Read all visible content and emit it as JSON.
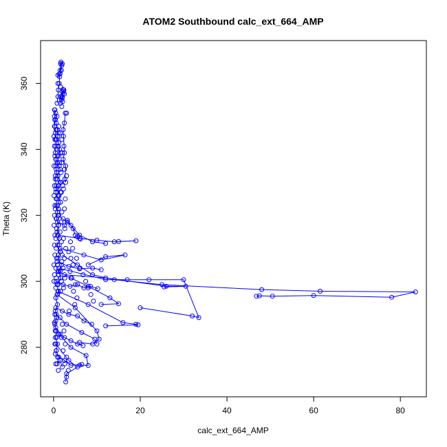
{
  "chart_data": {
    "type": "line",
    "title": "ATOM2 Southbound calc_ext_664_AMP",
    "xlabel": "calc_ext_664_AMP",
    "ylabel": "Theta (K)",
    "xlim": [
      -3,
      86
    ],
    "ylim": [
      265,
      373
    ],
    "xticks": [
      0,
      20,
      40,
      60,
      80
    ],
    "yticks": [
      280,
      300,
      320,
      340,
      360
    ],
    "grid": false,
    "color": "#0000ff",
    "marker": "open-circle",
    "series": [
      {
        "name": "",
        "points": [
          [
            0.2,
            352
          ],
          [
            0.3,
            349
          ],
          [
            0.2,
            347
          ],
          [
            0.4,
            345
          ],
          [
            0.3,
            343
          ],
          [
            0.5,
            341
          ],
          [
            0.4,
            339
          ],
          [
            0.6,
            337
          ],
          [
            0.5,
            335
          ],
          [
            0.7,
            333
          ],
          [
            0.4,
            331
          ],
          [
            0.6,
            329
          ],
          [
            0.5,
            327
          ],
          [
            0.8,
            325
          ],
          [
            0.6,
            323
          ],
          [
            0.9,
            321
          ],
          [
            0.7,
            319
          ],
          [
            1.1,
            317
          ],
          [
            0.8,
            315
          ],
          [
            1.3,
            313
          ],
          [
            0.9,
            311
          ],
          [
            1.5,
            309
          ],
          [
            1.0,
            307
          ],
          [
            1.8,
            305
          ],
          [
            1.2,
            303
          ],
          [
            1.6,
            301
          ],
          [
            0.8,
            299
          ],
          [
            1.1,
            297
          ],
          [
            0.5,
            295
          ],
          [
            0.9,
            293
          ],
          [
            0.4,
            291
          ],
          [
            0.7,
            289
          ],
          [
            0.3,
            287
          ],
          [
            0.6,
            285
          ],
          [
            0.4,
            283
          ],
          [
            0.9,
            281
          ],
          [
            0.6,
            279
          ],
          [
            1.2,
            277
          ],
          [
            0.8,
            275
          ],
          [
            1.5,
            276
          ],
          [
            2.0,
            274
          ]
        ]
      },
      {
        "name": "",
        "points": [
          [
            2.0,
            308
          ],
          [
            5.5,
            305
          ],
          [
            9.0,
            302
          ],
          [
            14.0,
            300.5
          ],
          [
            25.0,
            299
          ],
          [
            48.0,
            297.5
          ],
          [
            61.5,
            297
          ],
          [
            83.5,
            296.8
          ],
          [
            78.0,
            295.2
          ],
          [
            60.0,
            295.7
          ],
          [
            50.5,
            295.5
          ],
          [
            47.5,
            295.6
          ],
          [
            46.8,
            295.5
          ]
        ]
      },
      {
        "name": "",
        "points": [
          [
            1.0,
            297
          ],
          [
            8.0,
            293
          ],
          [
            16.0,
            287.5
          ],
          [
            19.0,
            287
          ],
          [
            19.5,
            286.8
          ],
          [
            12.0,
            286.5
          ]
        ]
      },
      {
        "name": "",
        "points": [
          [
            1.2,
            304
          ],
          [
            12.0,
            300.5
          ],
          [
            17.0,
            300.5
          ],
          [
            22.0,
            300.5
          ],
          [
            30.0,
            300.5
          ],
          [
            33.5,
            289
          ],
          [
            32.0,
            289.5
          ],
          [
            20.0,
            292
          ]
        ]
      },
      {
        "name": "",
        "points": [
          [
            2.5,
            302
          ],
          [
            12.0,
            301
          ],
          [
            26.0,
            298.5
          ],
          [
            30.5,
            298.5
          ],
          [
            25.5,
            298.3
          ]
        ]
      },
      {
        "name": "",
        "points": [
          [
            1.0,
            314
          ],
          [
            6.0,
            313
          ],
          [
            10.0,
            312.5
          ],
          [
            14.0,
            312
          ],
          [
            19.0,
            312.3
          ],
          [
            15.0,
            312.1
          ]
        ]
      },
      {
        "name": "",
        "points": [
          [
            1.5,
            310
          ],
          [
            7.0,
            308
          ],
          [
            11.0,
            306.5
          ],
          [
            16.5,
            308
          ],
          [
            12.0,
            307.5
          ],
          [
            8.0,
            305
          ]
        ]
      },
      {
        "name": "",
        "points": [
          [
            1.0,
            303
          ],
          [
            4.0,
            301
          ],
          [
            8.0,
            298.5
          ],
          [
            13.0,
            295
          ],
          [
            15.0,
            293.2
          ],
          [
            11.0,
            293
          ]
        ]
      },
      {
        "name": "",
        "points": [
          [
            0.8,
            296
          ],
          [
            5.0,
            292
          ],
          [
            10.0,
            285
          ],
          [
            10.5,
            282.5
          ],
          [
            9.0,
            281
          ],
          [
            6.0,
            281.5
          ]
        ]
      },
      {
        "name": "",
        "points": [
          [
            1.2,
            284
          ],
          [
            4.0,
            280
          ],
          [
            7.5,
            277.5
          ],
          [
            8.0,
            274.5
          ],
          [
            6.0,
            274.6
          ]
        ]
      },
      {
        "name": "",
        "points": [
          [
            0.5,
            281
          ],
          [
            3.5,
            276
          ],
          [
            5.5,
            274
          ],
          [
            3.0,
            272
          ],
          [
            2.8,
            269.5
          ]
        ]
      },
      {
        "name": "",
        "points": [
          [
            1.0,
            320
          ],
          [
            4.0,
            317
          ],
          [
            6.0,
            314
          ],
          [
            9.0,
            312
          ],
          [
            12.0,
            311.5
          ]
        ]
      },
      {
        "name": "",
        "points": [
          [
            0.8,
            306
          ],
          [
            3.5,
            304.5
          ],
          [
            6.0,
            303.8
          ],
          [
            9.0,
            304
          ],
          [
            11.0,
            303.5
          ]
        ]
      },
      {
        "name": "",
        "points": [
          [
            0.6,
            290
          ],
          [
            3.0,
            287
          ],
          [
            6.5,
            284.5
          ],
          [
            9.5,
            282.5
          ],
          [
            10.0,
            281
          ]
        ]
      },
      {
        "name": "",
        "points": [
          [
            0.4,
            278
          ],
          [
            2.5,
            276
          ],
          [
            4.0,
            274.5
          ],
          [
            6.5,
            274.8
          ]
        ]
      },
      {
        "name": "",
        "points": [
          [
            0.3,
            352
          ],
          [
            0.5,
            351
          ],
          [
            0.8,
            350
          ],
          [
            0.4,
            349
          ],
          [
            0.6,
            348
          ],
          [
            0.9,
            346
          ],
          [
            1.1,
            345
          ],
          [
            1.0,
            344
          ],
          [
            0.7,
            343
          ],
          [
            1.2,
            342
          ],
          [
            1.4,
            340
          ],
          [
            1.2,
            338
          ],
          [
            0.8,
            336
          ],
          [
            1.5,
            334
          ],
          [
            1.0,
            332
          ],
          [
            1.7,
            330
          ],
          [
            1.1,
            328
          ],
          [
            1.3,
            326
          ],
          [
            1.6,
            324
          ],
          [
            1.1,
            322
          ]
        ]
      },
      {
        "name": "",
        "points": [
          [
            1.8,
            355
          ],
          [
            2.0,
            356
          ],
          [
            2.2,
            357
          ],
          [
            2.4,
            358
          ],
          [
            2.0,
            357.5
          ],
          [
            1.7,
            356
          ],
          [
            1.6,
            354
          ],
          [
            2.0,
            355.5
          ],
          [
            2.3,
            357.6
          ]
        ]
      },
      {
        "name": "",
        "points": [
          [
            0.8,
            354
          ],
          [
            1.0,
            356
          ],
          [
            1.1,
            358
          ],
          [
            1.3,
            360
          ],
          [
            1.4,
            362
          ],
          [
            1.5,
            364
          ],
          [
            1.6,
            366
          ],
          [
            1.7,
            366.5
          ],
          [
            1.9,
            365.5
          ],
          [
            1.5,
            363
          ],
          [
            1.0,
            362.5
          ]
        ]
      },
      {
        "name": "",
        "points": [
          [
            2.7,
            351
          ],
          [
            2.5,
            348
          ],
          [
            2.2,
            346
          ],
          [
            2.3,
            344
          ],
          [
            2.5,
            339
          ],
          [
            2.2,
            337
          ],
          [
            2.8,
            335
          ],
          [
            2.6,
            331
          ],
          [
            2.8,
            330
          ]
        ]
      },
      {
        "name": "",
        "points": [
          [
            0.9,
            318
          ],
          [
            2.5,
            317
          ],
          [
            3.2,
            318.5
          ],
          [
            4.5,
            316
          ],
          [
            5.0,
            314
          ],
          [
            5.5,
            313.5
          ],
          [
            6.2,
            312.8
          ]
        ]
      },
      {
        "name": "",
        "points": [
          [
            0.6,
            300
          ],
          [
            2.2,
            299
          ],
          [
            3.8,
            298.5
          ],
          [
            5.5,
            299
          ],
          [
            7.0,
            298
          ],
          [
            8.5,
            298.5
          ],
          [
            10.2,
            297.8
          ]
        ]
      },
      {
        "name": "",
        "points": [
          [
            0.5,
            292
          ],
          [
            2.0,
            291
          ],
          [
            3.5,
            290
          ],
          [
            5.5,
            289.5
          ],
          [
            7.0,
            288
          ],
          [
            8.8,
            287
          ]
        ]
      },
      {
        "name": "",
        "points": [
          [
            0.5,
            286
          ],
          [
            1.5,
            284
          ],
          [
            2.5,
            283
          ],
          [
            4.0,
            282
          ],
          [
            5.5,
            281
          ],
          [
            6.8,
            280.5
          ]
        ]
      }
    ],
    "scatter_only": [
      [
        0.1,
        300
      ],
      [
        0.2,
        302
      ],
      [
        0.1,
        305
      ],
      [
        0.3,
        308
      ],
      [
        0.2,
        311
      ],
      [
        0.3,
        314
      ],
      [
        0.1,
        317
      ],
      [
        0.2,
        320
      ],
      [
        0.3,
        323
      ],
      [
        0.1,
        326
      ],
      [
        0.2,
        329
      ],
      [
        0.4,
        332
      ],
      [
        0.1,
        335
      ],
      [
        0.3,
        338
      ],
      [
        0.2,
        341
      ],
      [
        0.1,
        344
      ],
      [
        0.3,
        347
      ],
      [
        0.2,
        350
      ],
      [
        0.5,
        298
      ],
      [
        0.6,
        301
      ],
      [
        0.5,
        304
      ],
      [
        0.7,
        307
      ],
      [
        0.6,
        310
      ],
      [
        0.5,
        313
      ],
      [
        0.7,
        316
      ],
      [
        0.6,
        319
      ],
      [
        0.4,
        322
      ],
      [
        0.6,
        325
      ],
      [
        0.5,
        328
      ],
      [
        0.7,
        331
      ],
      [
        0.6,
        334
      ],
      [
        0.5,
        337
      ],
      [
        0.7,
        340
      ],
      [
        0.5,
        343
      ],
      [
        0.6,
        346
      ],
      [
        0.4,
        349
      ],
      [
        0.9,
        296
      ],
      [
        1.0,
        299
      ],
      [
        1.2,
        302
      ],
      [
        0.9,
        305
      ],
      [
        1.1,
        308
      ],
      [
        1.3,
        311
      ],
      [
        0.9,
        314
      ],
      [
        1.1,
        317
      ],
      [
        1.2,
        320
      ],
      [
        0.9,
        323
      ],
      [
        1.1,
        326
      ],
      [
        1.2,
        329
      ],
      [
        1.0,
        332
      ],
      [
        1.3,
        335
      ],
      [
        0.9,
        338
      ],
      [
        1.1,
        341
      ],
      [
        1.0,
        344
      ],
      [
        1.6,
        297
      ],
      [
        1.8,
        300
      ],
      [
        1.5,
        303
      ],
      [
        1.9,
        306
      ],
      [
        1.6,
        309
      ],
      [
        1.8,
        312
      ],
      [
        1.5,
        315
      ],
      [
        1.7,
        318
      ],
      [
        1.9,
        321
      ],
      [
        1.6,
        324
      ],
      [
        1.8,
        327
      ],
      [
        1.5,
        330
      ],
      [
        1.7,
        333
      ],
      [
        1.9,
        336
      ],
      [
        1.6,
        339
      ],
      [
        2.3,
        298
      ],
      [
        2.6,
        301
      ],
      [
        2.2,
        304
      ],
      [
        2.5,
        307
      ],
      [
        2.8,
        310
      ],
      [
        2.3,
        313
      ],
      [
        2.6,
        316
      ],
      [
        2.2,
        319
      ],
      [
        2.5,
        322
      ],
      [
        2.7,
        325
      ],
      [
        2.3,
        328
      ],
      [
        2.6,
        331
      ],
      [
        0.3,
        290
      ],
      [
        0.5,
        288
      ],
      [
        0.2,
        287.5
      ],
      [
        0.4,
        285
      ],
      [
        0.7,
        283
      ],
      [
        0.3,
        281
      ],
      [
        0.6,
        279
      ],
      [
        0.9,
        277
      ],
      [
        0.5,
        275
      ],
      [
        1.1,
        273
      ],
      [
        1.5,
        289
      ],
      [
        2.0,
        287
      ],
      [
        2.4,
        285
      ],
      [
        1.8,
        283
      ],
      [
        2.7,
        281
      ],
      [
        2.2,
        279
      ],
      [
        3.0,
        277
      ],
      [
        2.6,
        275
      ],
      [
        3.4,
        273
      ],
      [
        3.0,
        271
      ],
      [
        3.5,
        309
      ],
      [
        4.0,
        307
      ],
      [
        4.5,
        305
      ],
      [
        3.8,
        303
      ],
      [
        4.2,
        301
      ],
      [
        5.0,
        299
      ],
      [
        4.6,
        297
      ],
      [
        5.4,
        295
      ],
      [
        4.9,
        293
      ],
      [
        3.6,
        291
      ],
      [
        3.2,
        318
      ],
      [
        3.9,
        312
      ],
      [
        4.4,
        310
      ],
      [
        5.3,
        307
      ],
      [
        6.1,
        304
      ],
      [
        6.8,
        302
      ],
      [
        7.4,
        300
      ],
      [
        8.0,
        298
      ],
      [
        8.6,
        296
      ],
      [
        9.2,
        294
      ],
      [
        2.0,
        366
      ],
      [
        1.8,
        364
      ],
      [
        1.3,
        362.8
      ],
      [
        1.0,
        360
      ],
      [
        1.6,
        359
      ],
      [
        2.2,
        358.2
      ],
      [
        2.5,
        356.8
      ],
      [
        2.1,
        354.5
      ],
      [
        1.9,
        353
      ],
      [
        3.0,
        351
      ],
      [
        1.2,
        347
      ],
      [
        1.5,
        345
      ],
      [
        1.9,
        343
      ],
      [
        2.4,
        341
      ],
      [
        2.0,
        339
      ],
      [
        1.4,
        336
      ],
      [
        2.5,
        334
      ],
      [
        3.0,
        332
      ],
      [
        2.1,
        329
      ],
      [
        1.6,
        327
      ]
    ]
  }
}
